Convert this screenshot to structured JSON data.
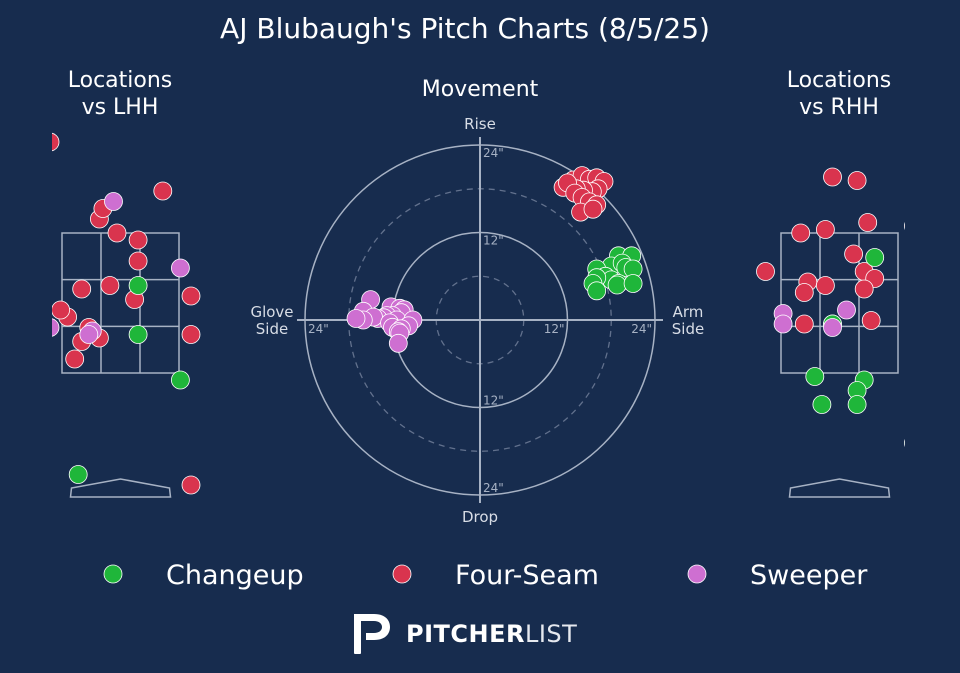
{
  "title": "AJ Blubaugh's Pitch Charts (8/5/25)",
  "colors": {
    "background": "#172c4e",
    "Changeup": "#1fb63a",
    "Four-Seam": "#d9344e",
    "Sweeper": "#ce6fd1",
    "grid": "#a7b2c4"
  },
  "logo": {
    "bold": "PITCHER",
    "light": "LIST",
    "icon": "pitcherlist-logo-icon"
  },
  "chart_data": [
    {
      "id": "lhh",
      "type": "scatter",
      "title": "Locations\nvs LHH",
      "grid": "3x3 strike zone",
      "series": [
        {
          "name": "Four-Seam",
          "points": [
            [
              1.0,
              -0.1
            ],
            [
              -1.0,
              4.8
            ],
            [
              0.6,
              4.1
            ],
            [
              -0.3,
              3.7
            ],
            [
              -0.05,
              3.5
            ],
            [
              -0.25,
              3.85
            ],
            [
              0.25,
              3.4
            ],
            [
              0.25,
              3.1
            ],
            [
              -0.15,
              2.75
            ],
            [
              -0.55,
              2.7
            ],
            [
              0.2,
              2.55
            ],
            [
              -0.75,
              2.3
            ],
            [
              -0.85,
              2.4
            ],
            [
              -1.35,
              2.35
            ],
            [
              1.0,
              2.6
            ],
            [
              -0.45,
              2.15
            ],
            [
              -0.55,
              1.95
            ],
            [
              1.0,
              2.05
            ],
            [
              -0.3,
              2.0
            ],
            [
              -0.65,
              1.7
            ],
            [
              -1.25,
              1.2
            ]
          ]
        },
        {
          "name": "Sweeper",
          "points": [
            [
              -0.1,
              3.95
            ],
            [
              0.85,
              3.0
            ],
            [
              -1.0,
              2.15
            ],
            [
              -1.2,
              2.1
            ],
            [
              -0.4,
              2.1
            ],
            [
              -0.45,
              2.05
            ]
          ]
        },
        {
          "name": "Changeup",
          "points": [
            [
              0.25,
              2.75
            ],
            [
              0.25,
              2.05
            ],
            [
              0.85,
              1.4
            ],
            [
              -1.25,
              0.75
            ],
            [
              -0.6,
              0.05
            ]
          ]
        }
      ]
    },
    {
      "id": "movement",
      "type": "scatter",
      "title": "Movement",
      "xlabel_left": "Glove\nSide",
      "xlabel_right": "Arm\nSide",
      "ylabel_top": "Rise",
      "ylabel_bottom": "Drop",
      "ring_labels": [
        "12\"",
        "24\""
      ],
      "range_inches": [
        -24,
        24
      ],
      "series": [
        {
          "name": "Four-Seam",
          "points": [
            [
              12.8,
              19.2
            ],
            [
              14.0,
              19.8
            ],
            [
              15.0,
              19.3
            ],
            [
              16.0,
              19.5
            ],
            [
              17.0,
              19.0
            ],
            [
              16.2,
              18.0
            ],
            [
              15.4,
              17.6
            ],
            [
              14.2,
              17.8
            ],
            [
              13.2,
              18.0
            ],
            [
              11.4,
              18.2
            ],
            [
              12.0,
              18.8
            ],
            [
              13.0,
              17.4
            ],
            [
              14.0,
              16.8
            ],
            [
              15.0,
              16.2
            ],
            [
              16.0,
              15.8
            ],
            [
              13.8,
              14.8
            ],
            [
              15.5,
              15.2
            ]
          ]
        },
        {
          "name": "Changeup",
          "points": [
            [
              19.0,
              8.8
            ],
            [
              20.8,
              8.8
            ],
            [
              18.0,
              7.4
            ],
            [
              19.5,
              7.8
            ],
            [
              20.0,
              7.2
            ],
            [
              21.0,
              7.0
            ],
            [
              16.0,
              7.0
            ],
            [
              17.2,
              6.0
            ],
            [
              18.0,
              5.5
            ],
            [
              19.0,
              5.0
            ],
            [
              16.0,
              5.8
            ],
            [
              15.5,
              5.0
            ],
            [
              18.8,
              4.8
            ],
            [
              21.0,
              5.0
            ],
            [
              16.0,
              4.0
            ]
          ]
        },
        {
          "name": "Sweeper",
          "points": [
            [
              -15.0,
              2.8
            ],
            [
              -12.2,
              1.8
            ],
            [
              -11.0,
              1.6
            ],
            [
              -16.0,
              1.2
            ],
            [
              -10.4,
              1.4
            ],
            [
              -10.8,
              1.0
            ],
            [
              -12.0,
              0.6
            ],
            [
              -12.8,
              0.6
            ],
            [
              -13.2,
              0.3
            ],
            [
              -14.0,
              0.2
            ],
            [
              -14.6,
              0.4
            ],
            [
              -16.0,
              0.0
            ],
            [
              -17.0,
              0.2
            ],
            [
              -11.4,
              0.0
            ],
            [
              -9.2,
              0.0
            ],
            [
              -12.4,
              -0.4
            ],
            [
              -9.8,
              -0.8
            ],
            [
              -12.0,
              -1.0
            ],
            [
              -10.8,
              -1.2
            ],
            [
              -11.2,
              -1.6
            ],
            [
              -11.0,
              -1.8
            ],
            [
              -11.2,
              -3.2
            ]
          ]
        }
      ]
    },
    {
      "id": "rhh",
      "type": "scatter",
      "title": "Locations\nvs RHH",
      "grid": "3x3 strike zone",
      "series": [
        {
          "name": "Four-Seam",
          "points": [
            [
              -0.1,
              4.3
            ],
            [
              0.25,
              4.25
            ],
            [
              0.4,
              3.65
            ],
            [
              1.3,
              3.75
            ],
            [
              1.05,
              3.6
            ],
            [
              -0.55,
              3.5
            ],
            [
              -0.2,
              3.55
            ],
            [
              0.2,
              3.2
            ],
            [
              0.35,
              2.95
            ],
            [
              0.5,
              2.85
            ],
            [
              -1.05,
              2.95
            ],
            [
              -0.45,
              2.8
            ],
            [
              -0.2,
              2.75
            ],
            [
              -0.5,
              2.65
            ],
            [
              0.35,
              2.7
            ],
            [
              0.45,
              2.25
            ],
            [
              -0.5,
              2.2
            ],
            [
              -0.1,
              2.2
            ]
          ]
        },
        {
          "name": "Changeup",
          "points": [
            [
              0.5,
              3.15
            ],
            [
              1.4,
              2.8
            ],
            [
              -0.1,
              2.2
            ],
            [
              -1.85,
              1.7
            ],
            [
              1.4,
              1.7
            ],
            [
              -0.35,
              1.45
            ],
            [
              0.35,
              1.4
            ],
            [
              0.25,
              1.25
            ],
            [
              -0.25,
              1.05
            ],
            [
              0.25,
              1.05
            ],
            [
              1.05,
              0.5
            ]
          ]
        },
        {
          "name": "Sweeper",
          "points": [
            [
              -2.3,
              3.6
            ],
            [
              0.1,
              2.4
            ],
            [
              -0.8,
              2.35
            ],
            [
              -0.8,
              2.2
            ],
            [
              -0.1,
              2.15
            ],
            [
              -2.0,
              2.15
            ],
            [
              -1.8,
              1.75
            ],
            [
              -2.25,
              1.1
            ],
            [
              -2.25,
              0.75
            ]
          ]
        }
      ]
    }
  ],
  "legend": [
    "Changeup",
    "Four-Seam",
    "Sweeper"
  ]
}
